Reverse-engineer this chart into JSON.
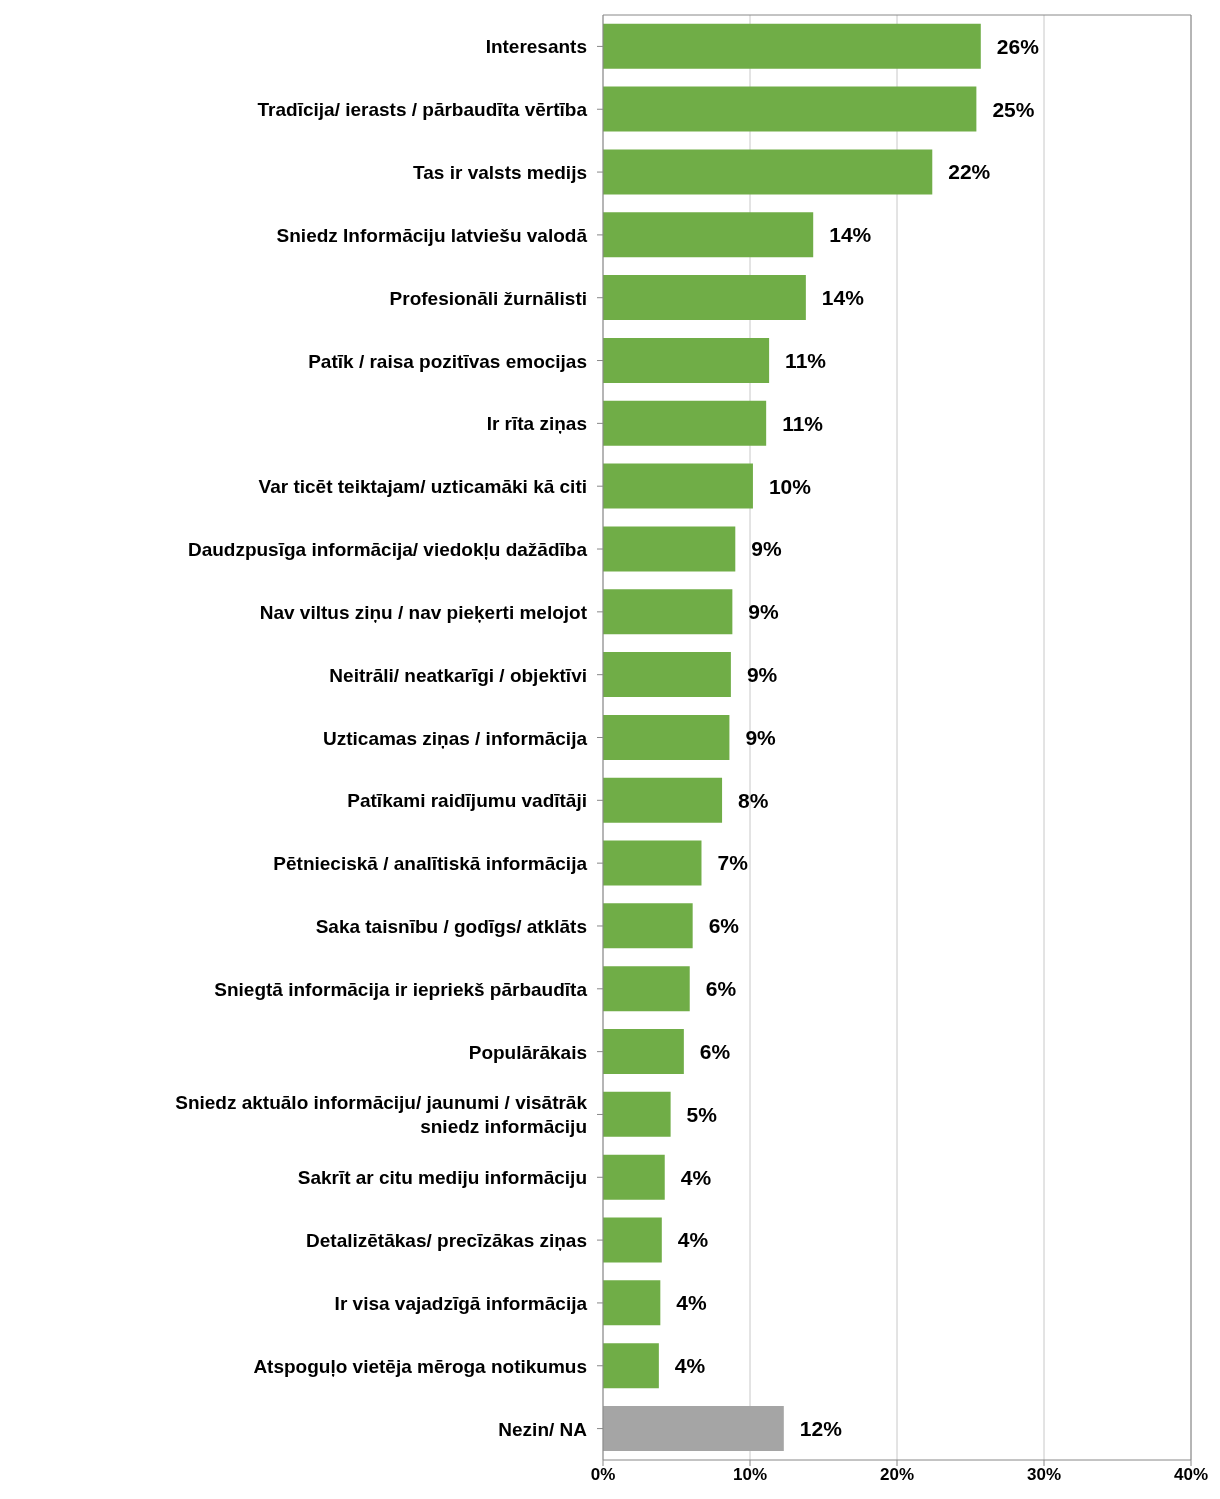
{
  "chart_data": {
    "type": "bar",
    "orientation": "horizontal",
    "categories": [
      "Interesants",
      "Tradīcija/ ierasts / pārbaudīta vērtība",
      "Tas ir valsts medijs",
      "Sniedz Informāciju latviešu valodā",
      "Profesionāli žurnālisti",
      "Patīk / raisa pozitīvas emocijas",
      "Ir rīta ziņas",
      "Var ticēt teiktajam/ uzticamāki kā citi",
      "Daudzpusīga informācija/ viedokļu dažādība",
      "Nav viltus ziņu / nav pieķerti melojot",
      "Neitrāli/ neatkarīgi / objektīvi",
      "Uzticamas ziņas / informācija",
      "Patīkami raidījumu vadītāji",
      "Pētnieciskā / analītiskā informācija",
      "Saka taisnību / godīgs/ atklāts",
      "Sniegtā informācija ir iepriekš pārbaudīta",
      "Populārākais",
      "Sniedz aktuālo informāciju/ jaunumi / visātrāk sniedz informāciju",
      "Sakrīt ar citu mediju informāciju",
      "Detalizētākas/ precīzākas ziņas",
      "Ir visa vajadzīgā informācija",
      "Atspoguļo vietēja mēroga notikumus",
      "Nezin/ NA"
    ],
    "values": [
      25.7,
      25.4,
      22.4,
      14.3,
      13.8,
      11.3,
      11.1,
      10.2,
      9.0,
      8.8,
      8.7,
      8.6,
      8.1,
      6.7,
      6.1,
      5.9,
      5.5,
      4.6,
      4.2,
      4.0,
      3.9,
      3.8,
      12.3
    ],
    "value_labels": [
      "26%",
      "25%",
      "22%",
      "14%",
      "14%",
      "11%",
      "11%",
      "10%",
      "9%",
      "9%",
      "9%",
      "9%",
      "8%",
      "7%",
      "6%",
      "6%",
      "6%",
      "5%",
      "4%",
      "4%",
      "4%",
      "4%",
      "12%"
    ],
    "colors": [
      "#70ad47",
      "#70ad47",
      "#70ad47",
      "#70ad47",
      "#70ad47",
      "#70ad47",
      "#70ad47",
      "#70ad47",
      "#70ad47",
      "#70ad47",
      "#70ad47",
      "#70ad47",
      "#70ad47",
      "#70ad47",
      "#70ad47",
      "#70ad47",
      "#70ad47",
      "#70ad47",
      "#70ad47",
      "#70ad47",
      "#70ad47",
      "#70ad47",
      "#a5a5a5"
    ],
    "xlim": [
      0,
      40
    ],
    "xticks": [
      {
        "value": 0,
        "label": "0%"
      },
      {
        "value": 10,
        "label": "10%"
      },
      {
        "value": 20,
        "label": "20%"
      },
      {
        "value": 30,
        "label": "30%"
      },
      {
        "value": 40,
        "label": "40%"
      }
    ],
    "grid": "x"
  }
}
